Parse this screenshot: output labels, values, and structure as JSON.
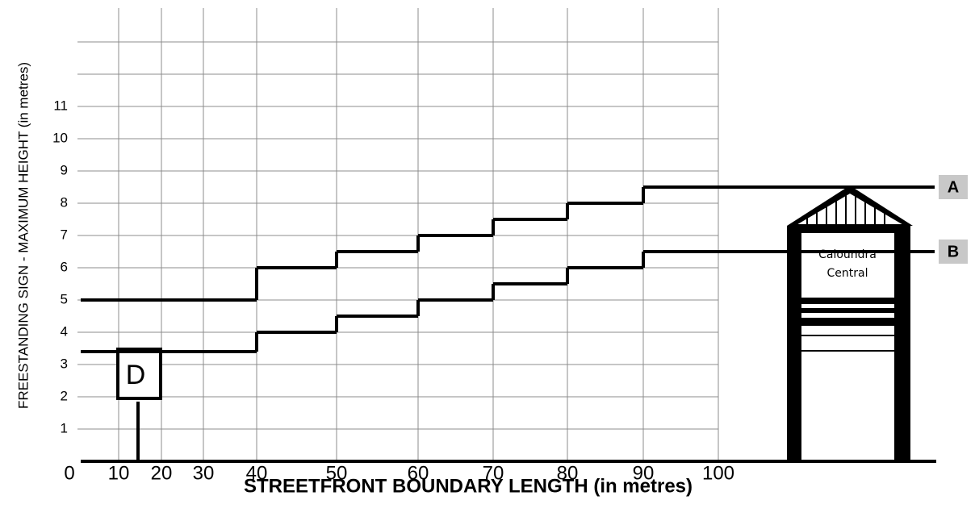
{
  "chart_data": {
    "type": "step",
    "xlabel": "STREETFRONT BOUNDARY LENGTH (in metres)",
    "ylabel": "FREESTANDING SIGN - MAXIMUM HEIGHT (in metres)",
    "xticks": [
      0,
      10,
      20,
      30,
      40,
      50,
      60,
      70,
      80,
      90,
      100
    ],
    "yticks": [
      1,
      2,
      3,
      4,
      5,
      6,
      7,
      8,
      9,
      10,
      11
    ],
    "ygrid": [
      1,
      2,
      3,
      4,
      5,
      6,
      7,
      8,
      9,
      10,
      11,
      12,
      13
    ],
    "ylim": [
      0,
      14
    ],
    "grid": true,
    "series": [
      {
        "name": "A",
        "color": "#000000",
        "x": [
          0,
          40,
          50,
          60,
          70,
          80,
          90
        ],
        "values": [
          5,
          6,
          6.5,
          7,
          7.5,
          8,
          8.5
        ]
      },
      {
        "name": "B",
        "color": "#000000",
        "x": [
          0,
          40,
          50,
          60,
          70,
          80,
          90
        ],
        "values": [
          3.4,
          4,
          4.5,
          5,
          5.5,
          6,
          6.5
        ]
      }
    ],
    "annotations": [
      "D",
      "Caloundra",
      "Central"
    ]
  }
}
